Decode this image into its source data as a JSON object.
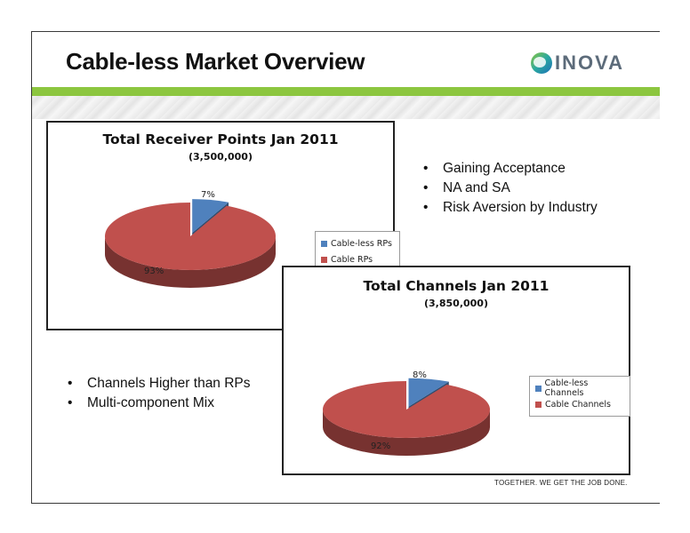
{
  "slide": {
    "title": "Cable-less Market Overview",
    "logo_text": "INOVA",
    "footer": "TOGETHER. WE GET THE JOB DONE.",
    "bullets_right": [
      "Gaining Acceptance",
      "NA and SA",
      "Risk Aversion by Industry"
    ],
    "bullets_left": [
      "Channels Higher than RPs",
      "Multi-component Mix"
    ],
    "bullet_symbol": "•",
    "colors": {
      "accent_green": "#8cc63f",
      "cable_less": "#4f81bd",
      "cable": "#c0504d"
    }
  },
  "chart_data": [
    {
      "type": "pie",
      "title": "Total Receiver Points Jan 2011",
      "subtitle": "(3,500,000)",
      "categories": [
        "Cable-less RPs",
        "Cable RPs"
      ],
      "values": [
        7,
        93
      ],
      "labels": [
        "7%",
        "93%"
      ],
      "legend": "right"
    },
    {
      "type": "pie",
      "title": "Total Channels Jan 2011",
      "subtitle": "(3,850,000)",
      "categories": [
        "Cable-less Channels",
        "Cable Channels"
      ],
      "values": [
        8,
        92
      ],
      "labels": [
        "8%",
        "92%"
      ],
      "legend": "right"
    }
  ]
}
